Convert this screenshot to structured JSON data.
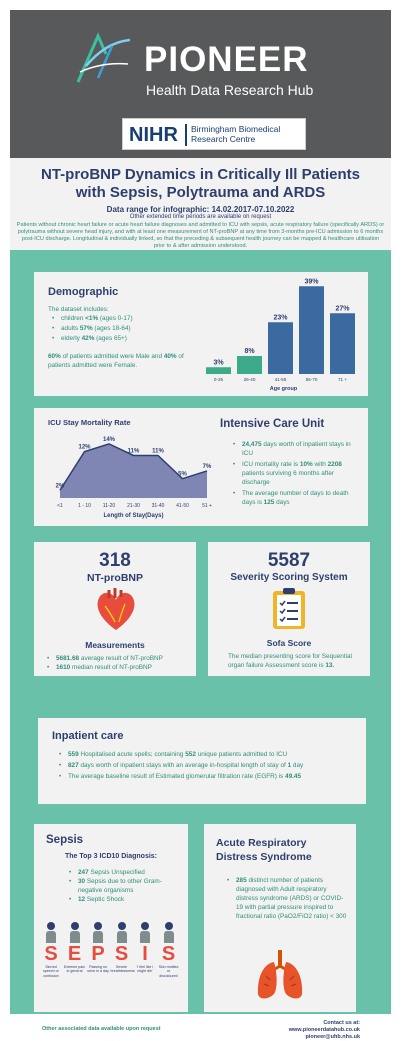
{
  "header": {
    "title": "PIONEER",
    "subtitle": "Health Data Research Hub",
    "partner_logo": "NIHR",
    "partner_name_line1": "Birmingham Biomedical",
    "partner_name_line2": "Research Centre"
  },
  "intro": {
    "title_line1": "NT-proBNP Dynamics in Critically Ill Patients",
    "title_line2": "with Sepsis, Polytrauma and ARDS",
    "date_range": "Data range for infographic: 14.02.2017-07.10.2022",
    "date_note": "Other extended time periods are available on request",
    "description": "Patients without chronic heart failure or acute heart failure diagnoses and admitted to ICU with sepsis, acute respiratory failure (specifically ARDS) or polytrauma without severe head injury, and with at least one measurement of NT-proBNP at any time from 3-months pre-ICU admission to 6 months post-ICU discharge. Longitudinal & individually linked, so that the preceding & subsequent health journey can be mapped & healthcare utilisation prior to & after admission understood."
  },
  "demographic": {
    "title": "Demographic",
    "intro": "The dataset includes:",
    "items": [
      {
        "pre": "children ",
        "value": "<1%",
        "post": " (ages 0-17)"
      },
      {
        "pre": "adults ",
        "value": "57%",
        "post": " (ages 18-64)"
      },
      {
        "pre": "elderly ",
        "value": "42%",
        "post": " (ages 65+)"
      }
    ],
    "gender_value1": "60%",
    "gender_text1": " of patients admitted were Male and",
    "gender_value2": "40%",
    "gender_text2": " of patients admitted were Female."
  },
  "icu": {
    "title": "Intensive Care Unit",
    "items": [
      {
        "value": "24,475",
        "text": " days worth of inpatient stays in ICU"
      },
      {
        "pre": "ICU mortality rate is ",
        "value": "10%",
        "mid": " with ",
        "value2": "2208",
        "text": " patients surviving 6 months after discharge"
      },
      {
        "pre": "The average number of days to death days is ",
        "value": "125",
        "text": " days"
      }
    ]
  },
  "ntprobnp": {
    "number": "318",
    "label": "NT-proBNP",
    "measurements_title": "Measurements",
    "items": [
      {
        "value": "5681.68",
        "text": " average result of NT-proBNP"
      },
      {
        "value": "1610",
        "text": " median result of NT-proBNP"
      }
    ]
  },
  "severity": {
    "number": "5587",
    "label": "Severity Scoring System",
    "sofa_title": "Sofa Score",
    "text": "The median presenting score for Sequential organ failure Assessment score is ",
    "value": "13."
  },
  "inpatient": {
    "title": "Inpatient care",
    "items": [
      {
        "value": "559",
        "text": " Hospitalised acute spells; containing ",
        "value2": "552",
        "text2": " unique patients admitted to ICU"
      },
      {
        "value": "827",
        "text": " days worth of inpatient stays with an average in-hospital length of stay of ",
        "value2": "1",
        "text2": " day"
      },
      {
        "text": "The average baseline result of Estimated glomerular filtration rate (EGFR) is ",
        "value": "49.45"
      }
    ]
  },
  "sepsis": {
    "title": "Sepsis",
    "subtitle": "The Top 3 ICD10 Diagnosis:",
    "items": [
      {
        "value": "247",
        "text": " Sepsis Unspecified"
      },
      {
        "value": "30",
        "text": " Sepsis due to other Gram-negative organisms"
      },
      {
        "value": "12",
        "text": " Septic Shock"
      }
    ],
    "letters": [
      "S",
      "E",
      "P",
      "S",
      "I",
      "S"
    ],
    "letter_notes": [
      "Slurred speech or confusion",
      "Extreme pain in general",
      "Passing no urine in a day",
      "Severe breathlessness",
      "'I feel like I might die'",
      "Skin mottled or discoloured"
    ]
  },
  "ards": {
    "title_line1": "Acute Respiratory",
    "title_line2": "Distress Syndrome",
    "value": "285",
    "text": " distinct number of patients diagnosed with Adult respiratory distress syndrome (ARDS) or COVID-19 with partial pressure inspired to fractional ratio (PaO2/FiO2 ratio) < 300"
  },
  "footer": {
    "left": "Other associated data available upon request",
    "contact_label": "Contact us at:",
    "website": "www.pioneerdatahub.co.uk",
    "email": "pioneer@uhb.nhs.uk"
  },
  "colors": {
    "navy": "#2e3f6e",
    "teal": "#2f8f7a",
    "background_teal": "#6ac1a9",
    "bar_teal": "#3daa8a",
    "bar_blue": "#3b6aa0",
    "area_fill": "#7f86b3"
  },
  "chart_data": [
    {
      "type": "bar",
      "xlabel": "Age group",
      "categories": [
        "0-25",
        "26-40",
        "41-55",
        "56-70",
        "71 +"
      ],
      "values": [
        3,
        8,
        23,
        39,
        27
      ],
      "data_labels": [
        "3%",
        "8%",
        "23%",
        "39%",
        "27%"
      ],
      "ylim": [
        0,
        40
      ]
    },
    {
      "type": "area",
      "title": "ICU Stay Mortality Rate",
      "xlabel": "Length of Stay(Days)",
      "categories": [
        "<1",
        "1 - 10",
        "11-20",
        "21-30",
        "31-40",
        "41-50",
        "51 +"
      ],
      "values": [
        2,
        12,
        14,
        11,
        11,
        5,
        7
      ],
      "data_labels": [
        "2%",
        "12%",
        "14%",
        "11%",
        "11%",
        "5%",
        "7%"
      ],
      "ylim": [
        0,
        15
      ]
    }
  ]
}
